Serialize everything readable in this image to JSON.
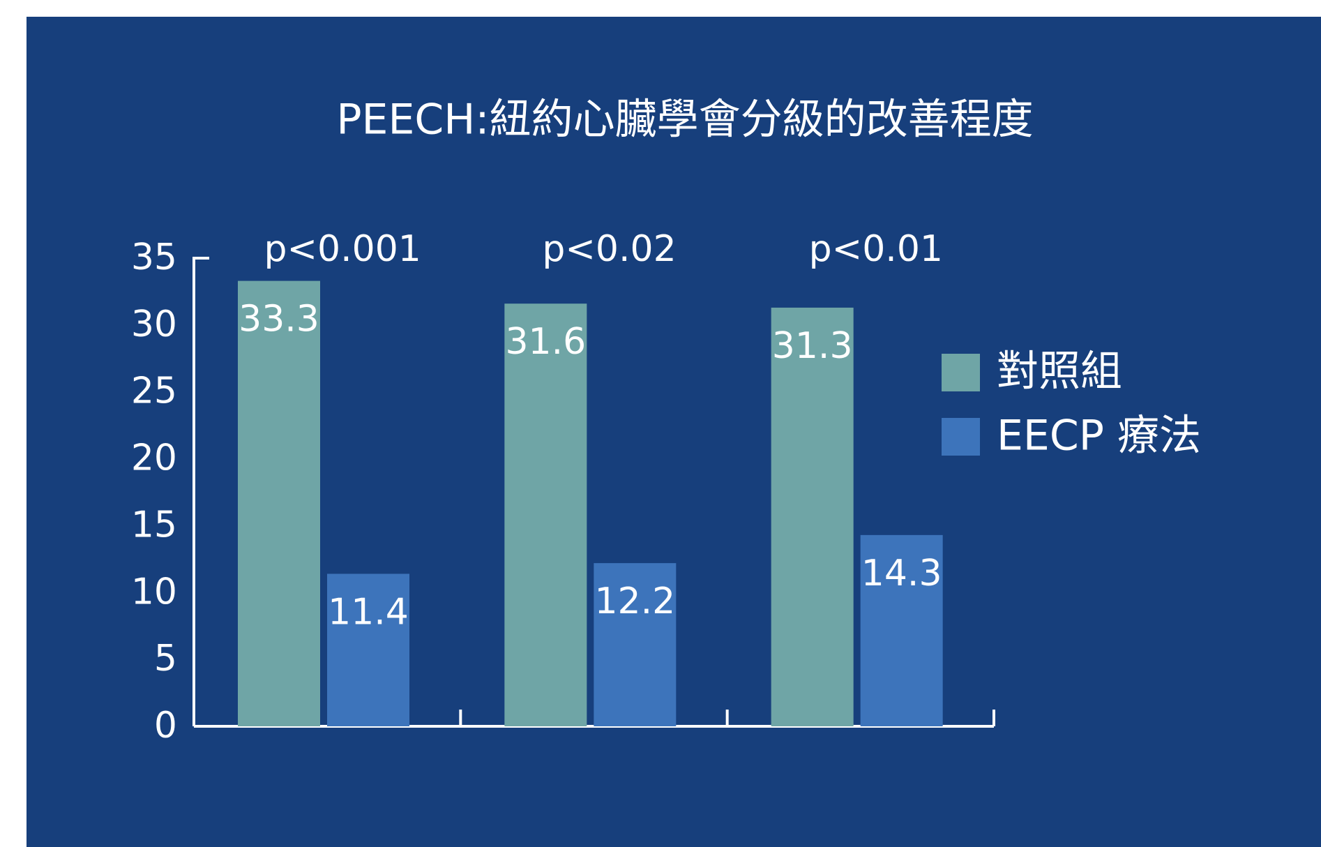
{
  "chart_data": {
    "type": "bar",
    "title": "PEECH:紐約心臟學會分級的改善程度",
    "categories": [
      null,
      null,
      null
    ],
    "annotations": [
      "p<0.001",
      "p<0.02",
      "p<0.01"
    ],
    "series": [
      {
        "name": "對照組",
        "color": "#6fa5a6",
        "values": [
          33.3,
          31.6,
          31.3
        ]
      },
      {
        "name": "EECP 療法",
        "color": "#3d74bb",
        "values": [
          11.4,
          12.2,
          14.3
        ]
      }
    ],
    "ylim": [
      0,
      35
    ],
    "yticks": [
      0,
      5,
      10,
      15,
      20,
      25,
      30,
      35
    ],
    "grid": false,
    "legend": "right"
  }
}
